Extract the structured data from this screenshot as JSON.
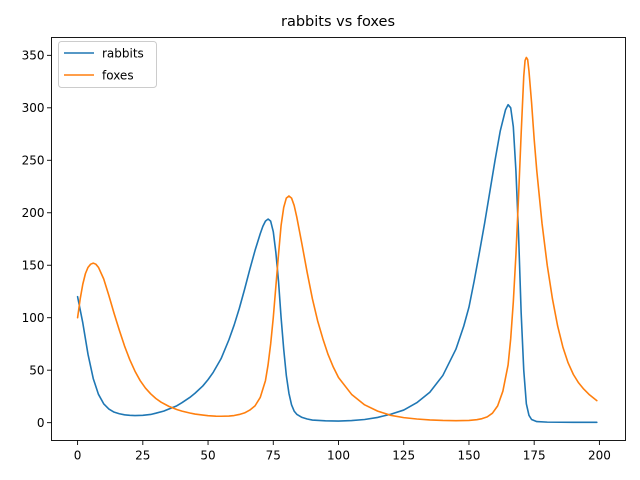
{
  "chart_data": {
    "type": "line",
    "title": "rabbits vs foxes",
    "xlabel": "",
    "ylabel": "",
    "xlim": [
      -10,
      210
    ],
    "ylim": [
      -17,
      367
    ],
    "xticks": [
      0,
      25,
      50,
      75,
      100,
      125,
      150,
      175,
      200
    ],
    "yticks": [
      0,
      50,
      100,
      150,
      200,
      250,
      300,
      350
    ],
    "grid": false,
    "legend_position": "top-left",
    "series": [
      {
        "name": "rabbits",
        "color": "#1f77b4",
        "points": [
          [
            0,
            120
          ],
          [
            2,
            95
          ],
          [
            4,
            65
          ],
          [
            6,
            42
          ],
          [
            8,
            27
          ],
          [
            10,
            18
          ],
          [
            12,
            13
          ],
          [
            14,
            10
          ],
          [
            16,
            8.5
          ],
          [
            18,
            7.5
          ],
          [
            20,
            7
          ],
          [
            22,
            6.8
          ],
          [
            25,
            7
          ],
          [
            28,
            7.8
          ],
          [
            30,
            9
          ],
          [
            33,
            11
          ],
          [
            35,
            13
          ],
          [
            38,
            16
          ],
          [
            40,
            19
          ],
          [
            43,
            24
          ],
          [
            45,
            28
          ],
          [
            48,
            35
          ],
          [
            50,
            41
          ],
          [
            52,
            48
          ],
          [
            55,
            61
          ],
          [
            58,
            79
          ],
          [
            60,
            93
          ],
          [
            62,
            109
          ],
          [
            64,
            127
          ],
          [
            66,
            146
          ],
          [
            68,
            164
          ],
          [
            70,
            180
          ],
          [
            71,
            187
          ],
          [
            72,
            192
          ],
          [
            73,
            194
          ],
          [
            74,
            192
          ],
          [
            75,
            182
          ],
          [
            76,
            162
          ],
          [
            77,
            135
          ],
          [
            78,
            100
          ],
          [
            79,
            70
          ],
          [
            80,
            45
          ],
          [
            81,
            28
          ],
          [
            82,
            17
          ],
          [
            83,
            11
          ],
          [
            84,
            8
          ],
          [
            86,
            5
          ],
          [
            88,
            3.5
          ],
          [
            90,
            2.5
          ],
          [
            95,
            1.8
          ],
          [
            100,
            1.5
          ],
          [
            105,
            2
          ],
          [
            110,
            3
          ],
          [
            115,
            5
          ],
          [
            120,
            8
          ],
          [
            125,
            12
          ],
          [
            130,
            19
          ],
          [
            135,
            29
          ],
          [
            140,
            45
          ],
          [
            145,
            70
          ],
          [
            148,
            92
          ],
          [
            150,
            110
          ],
          [
            152,
            135
          ],
          [
            154,
            162
          ],
          [
            156,
            190
          ],
          [
            158,
            220
          ],
          [
            160,
            250
          ],
          [
            162,
            278
          ],
          [
            164,
            298
          ],
          [
            165,
            303
          ],
          [
            166,
            300
          ],
          [
            167,
            282
          ],
          [
            168,
            240
          ],
          [
            169,
            180
          ],
          [
            170,
            105
          ],
          [
            171,
            50
          ],
          [
            172,
            18
          ],
          [
            173,
            7
          ],
          [
            174,
            3
          ],
          [
            176,
            1
          ],
          [
            180,
            0.5
          ],
          [
            190,
            0.3
          ],
          [
            199,
            0.3
          ]
        ]
      },
      {
        "name": "foxes",
        "color": "#ff7f0e",
        "points": [
          [
            0,
            100
          ],
          [
            1,
            118
          ],
          [
            2,
            132
          ],
          [
            3,
            142
          ],
          [
            4,
            148
          ],
          [
            5,
            151
          ],
          [
            6,
            152
          ],
          [
            7,
            151
          ],
          [
            8,
            148
          ],
          [
            10,
            137
          ],
          [
            12,
            121
          ],
          [
            14,
            104
          ],
          [
            16,
            88
          ],
          [
            18,
            73
          ],
          [
            20,
            60
          ],
          [
            22,
            49
          ],
          [
            24,
            40
          ],
          [
            26,
            33
          ],
          [
            28,
            27.5
          ],
          [
            30,
            23
          ],
          [
            32,
            19.5
          ],
          [
            35,
            15.5
          ],
          [
            38,
            12.5
          ],
          [
            40,
            11
          ],
          [
            43,
            9.2
          ],
          [
            45,
            8.2
          ],
          [
            48,
            7.2
          ],
          [
            50,
            6.6
          ],
          [
            53,
            6.2
          ],
          [
            55,
            6.1
          ],
          [
            58,
            6.3
          ],
          [
            60,
            6.8
          ],
          [
            62,
            7.8
          ],
          [
            64,
            9.3
          ],
          [
            66,
            12
          ],
          [
            68,
            16
          ],
          [
            70,
            24
          ],
          [
            72,
            40
          ],
          [
            73,
            55
          ],
          [
            74,
            75
          ],
          [
            75,
            100
          ],
          [
            76,
            130
          ],
          [
            77,
            160
          ],
          [
            78,
            188
          ],
          [
            79,
            205
          ],
          [
            80,
            214
          ],
          [
            81,
            216
          ],
          [
            82,
            214
          ],
          [
            83,
            207
          ],
          [
            84,
            196
          ],
          [
            86,
            170
          ],
          [
            88,
            143
          ],
          [
            90,
            118
          ],
          [
            92,
            97
          ],
          [
            94,
            80
          ],
          [
            96,
            65
          ],
          [
            98,
            53
          ],
          [
            100,
            43
          ],
          [
            105,
            27
          ],
          [
            110,
            17
          ],
          [
            115,
            11
          ],
          [
            120,
            7
          ],
          [
            125,
            4.8
          ],
          [
            130,
            3.5
          ],
          [
            135,
            2.6
          ],
          [
            140,
            2.1
          ],
          [
            145,
            1.9
          ],
          [
            150,
            2.1
          ],
          [
            153,
            2.8
          ],
          [
            155,
            3.8
          ],
          [
            157,
            5.5
          ],
          [
            159,
            9
          ],
          [
            161,
            16
          ],
          [
            163,
            30
          ],
          [
            165,
            55
          ],
          [
            166,
            80
          ],
          [
            167,
            115
          ],
          [
            168,
            160
          ],
          [
            169,
            215
          ],
          [
            170,
            275
          ],
          [
            171,
            330
          ],
          [
            171.5,
            345
          ],
          [
            172,
            348
          ],
          [
            172.5,
            346
          ],
          [
            173,
            335
          ],
          [
            174,
            305
          ],
          [
            175,
            270
          ],
          [
            176,
            240
          ],
          [
            178,
            190
          ],
          [
            180,
            150
          ],
          [
            182,
            118
          ],
          [
            184,
            92
          ],
          [
            186,
            72
          ],
          [
            188,
            57
          ],
          [
            190,
            46
          ],
          [
            192,
            38
          ],
          [
            194,
            32
          ],
          [
            196,
            27
          ],
          [
            199,
            21
          ]
        ]
      }
    ]
  }
}
